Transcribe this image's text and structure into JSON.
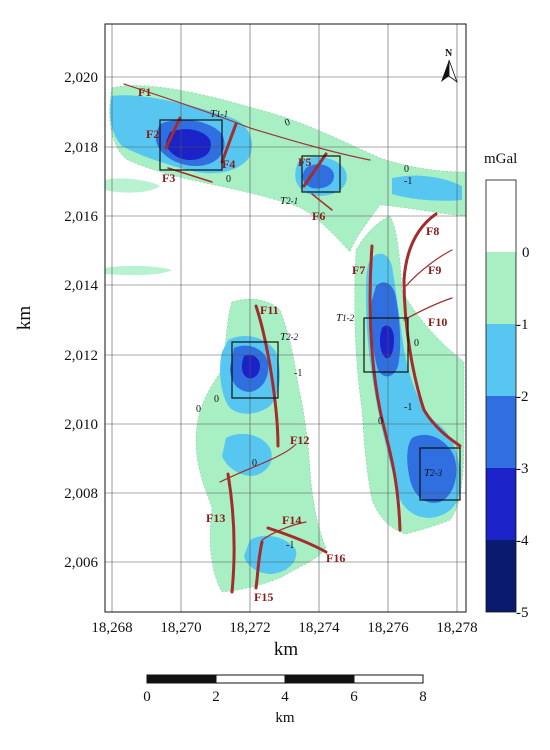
{
  "map": {
    "x_axis_title": "km",
    "y_axis_title": "km",
    "x_ticks": [
      "18,268",
      "18,270",
      "18,272",
      "18,274",
      "18,276",
      "18,278"
    ],
    "y_ticks": [
      "2,020",
      "2,018",
      "2,016",
      "2,014",
      "2,012",
      "2,010",
      "2,008",
      "2,006"
    ],
    "north_label": "N",
    "faults": [
      "F1",
      "F2",
      "F3",
      "F4",
      "F5",
      "F6",
      "F7",
      "F8",
      "F9",
      "F10",
      "F11",
      "F12",
      "F13",
      "F14",
      "F15",
      "F16"
    ],
    "boxes": {
      "t11": {
        "main": "T",
        "sub": "1-1"
      },
      "t21": {
        "main": "T",
        "sub": "2-1"
      },
      "t12": {
        "main": "T",
        "sub": "1-2"
      },
      "t22": {
        "main": "T",
        "sub": "2-2"
      },
      "t23": {
        "main": "T",
        "sub": "2-3"
      }
    },
    "contour_labels": [
      "0",
      "0",
      "0",
      "-1",
      "0",
      "0",
      "-1",
      "0",
      "0",
      "-1",
      "-1",
      "0"
    ]
  },
  "legend": {
    "unit": "mGal",
    "levels": [
      "0",
      "-1",
      "-2",
      "-3",
      "-4",
      "-5"
    ],
    "colors": [
      "#ffffff",
      "#a8efc4",
      "#57c7f2",
      "#2f6fe0",
      "#1a22c8",
      "#0a1a6e"
    ]
  },
  "scale_bar": {
    "labels": [
      "0",
      "2",
      "4",
      "6",
      "8"
    ],
    "unit": "km"
  }
}
